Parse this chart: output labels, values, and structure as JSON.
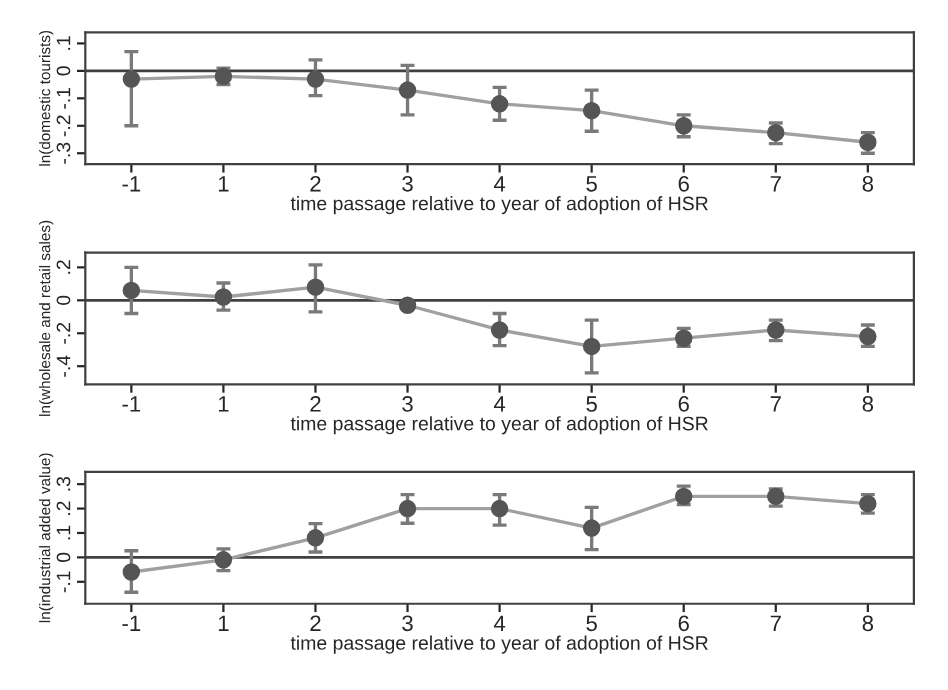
{
  "chart_data": [
    {
      "type": "line",
      "categories": [
        "-1",
        "1",
        "2",
        "3",
        "4",
        "5",
        "6",
        "7",
        "8"
      ],
      "xlabel": "time passage relative to year of adoption of HSR",
      "ylabel": "ln(domestic tourists)",
      "ylim": [
        -0.34,
        0.14
      ],
      "yticks": [
        {
          "value": 0.1,
          "label": ".1"
        },
        0,
        {
          "value": -0.1,
          "label": "-.1"
        },
        {
          "value": -0.2,
          "label": "-.2"
        },
        {
          "value": -0.3,
          "label": "-.3"
        }
      ],
      "marker": "circle",
      "line_style": "solid",
      "grid": false,
      "legend": false,
      "series": [
        {
          "color": "#a0a0a0",
          "values": [
            -0.03,
            -0.02,
            -0.03,
            -0.07,
            -0.12,
            -0.145,
            -0.2,
            -0.225,
            -0.26
          ],
          "errors": [
            [
              -0.2,
              0.07
            ],
            [
              -0.05,
              0.01
            ],
            [
              -0.09,
              0.04
            ],
            [
              -0.16,
              0.02
            ],
            [
              -0.18,
              -0.06
            ],
            [
              -0.22,
              -0.07
            ],
            [
              -0.24,
              -0.16
            ],
            [
              -0.265,
              -0.19
            ],
            [
              -0.3,
              -0.225
            ]
          ]
        }
      ],
      "ref_lines": [
        {
          "axis": "y",
          "value": 0,
          "color": "#404040"
        }
      ]
    },
    {
      "type": "line",
      "categories": [
        "-1",
        "1",
        "2",
        "3",
        "4",
        "5",
        "6",
        "7",
        "8"
      ],
      "xlabel": "time passage relative to year of adoption of HSR",
      "ylabel": "ln(wholesale and retail sales)",
      "ylim": [
        -0.51,
        0.29
      ],
      "yticks": [
        {
          "value": 0.2,
          "label": ".2"
        },
        0,
        {
          "value": -0.2,
          "label": "-.2"
        },
        {
          "value": -0.4,
          "label": "-.4"
        }
      ],
      "marker": "circle",
      "line_style": "solid",
      "grid": false,
      "legend": false,
      "series": [
        {
          "color": "#a0a0a0",
          "values": [
            0.06,
            0.02,
            0.08,
            -0.03,
            -0.18,
            -0.28,
            -0.23,
            -0.18,
            -0.22
          ],
          "errors": [
            [
              -0.08,
              0.2
            ],
            [
              -0.06,
              0.105
            ],
            [
              -0.07,
              0.215
            ],
            [
              -0.04,
              -0.015
            ],
            [
              -0.275,
              -0.08
            ],
            [
              -0.44,
              -0.12
            ],
            [
              -0.28,
              -0.17
            ],
            [
              -0.245,
              -0.12
            ],
            [
              -0.28,
              -0.15
            ]
          ]
        }
      ],
      "ref_lines": [
        {
          "axis": "y",
          "value": 0,
          "color": "#404040"
        }
      ]
    },
    {
      "type": "line",
      "categories": [
        "-1",
        "1",
        "2",
        "3",
        "4",
        "5",
        "6",
        "7",
        "8"
      ],
      "xlabel": "time passage relative to year of adoption of HSR",
      "ylabel": "ln(industrial added value)",
      "ylim": [
        -0.19,
        0.35
      ],
      "yticks": [
        {
          "value": 0.3,
          "label": ".3"
        },
        {
          "value": 0.2,
          "label": ".2"
        },
        {
          "value": 0.1,
          "label": ".1"
        },
        0,
        {
          "value": -0.1,
          "label": "-.1"
        }
      ],
      "marker": "circle",
      "line_style": "solid",
      "grid": false,
      "legend": false,
      "series": [
        {
          "color": "#a0a0a0",
          "values": [
            -0.06,
            -0.01,
            0.08,
            0.2,
            0.2,
            0.12,
            0.25,
            0.25,
            0.22
          ],
          "errors": [
            [
              -0.143,
              0.027
            ],
            [
              -0.054,
              0.035
            ],
            [
              0.022,
              0.138
            ],
            [
              0.14,
              0.257
            ],
            [
              0.132,
              0.257
            ],
            [
              0.032,
              0.205
            ],
            [
              0.216,
              0.292
            ],
            [
              0.21,
              0.281
            ],
            [
              0.181,
              0.257
            ]
          ]
        }
      ],
      "ref_lines": [
        {
          "axis": "y",
          "value": 0,
          "color": "#404040"
        }
      ]
    }
  ]
}
